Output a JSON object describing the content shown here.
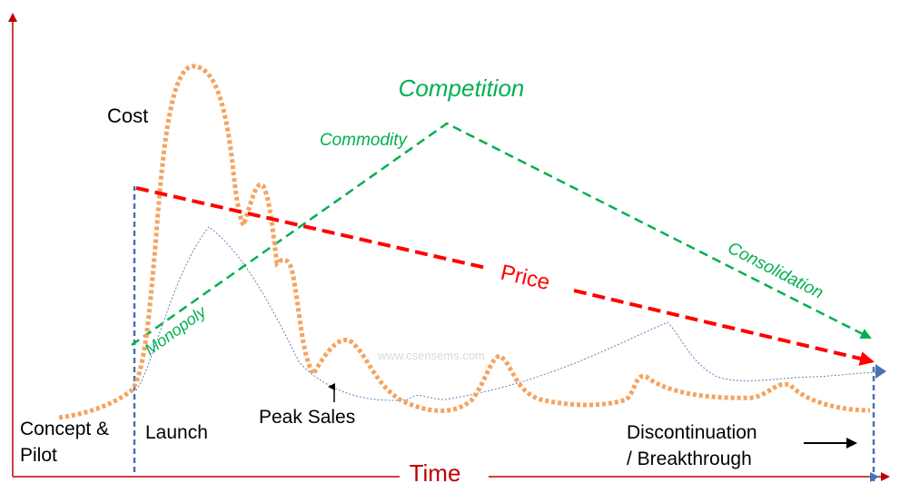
{
  "labels": {
    "competition": "Competition",
    "commodity": "Commodity",
    "monopoly": "Monopoly",
    "consolidation": "Consolidation",
    "cost": "Cost",
    "price": "Price",
    "time": "Time",
    "concept_line1": "Concept &",
    "concept_line2": "Pilot",
    "launch": "Launch",
    "peak_sales": "Peak Sales",
    "discontinuation_line1": "Discontinuation",
    "discontinuation_line2": "/ Breakthrough",
    "watermark": "www.csensems.com"
  },
  "colors": {
    "axis": "#c00000",
    "competition": "#00b050",
    "price": "#ff0000",
    "cost": "#f4a460",
    "sales": "#6b7eb8",
    "markers": "#4a72b0",
    "text": "#000000"
  }
}
